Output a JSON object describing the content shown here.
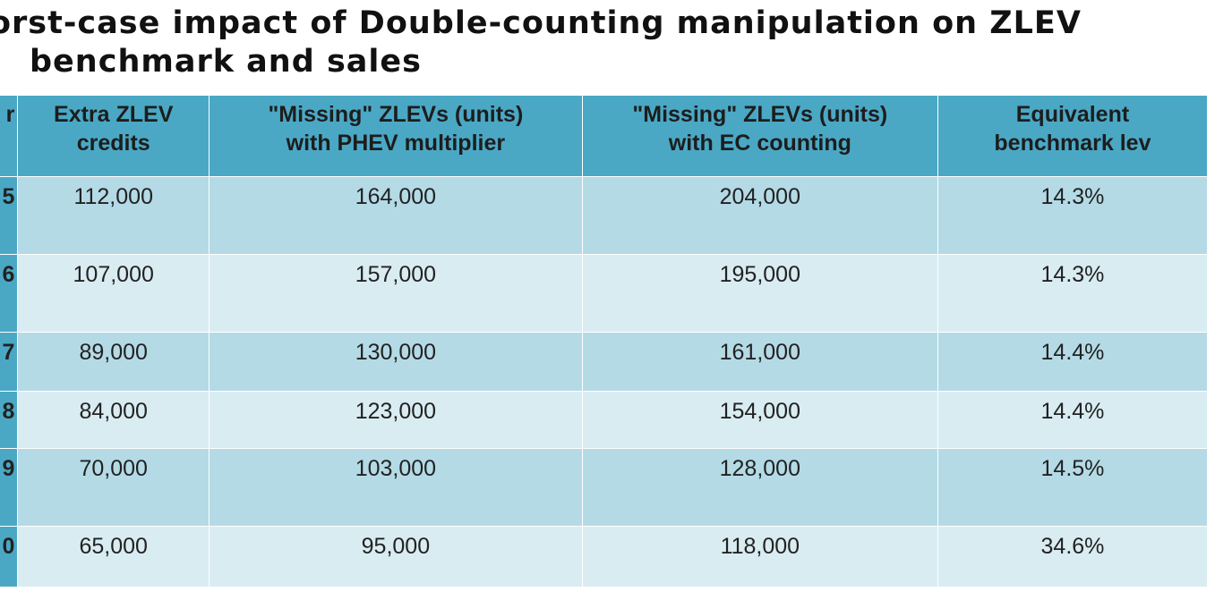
{
  "title": {
    "line1": "orst-case impact of Double-counting manipulation on ZLEV",
    "line2": "benchmark and sales"
  },
  "table": {
    "headers": [
      {
        "line1": "r",
        "line2": ""
      },
      {
        "line1": "Extra ZLEV",
        "line2": "credits"
      },
      {
        "line1": "\"Missing\" ZLEVs (units)",
        "line2": "with PHEV multiplier"
      },
      {
        "line1": "\"Missing\" ZLEVs (units)",
        "line2": "with EC counting"
      },
      {
        "line1": "Equivalent",
        "line2": "benchmark lev"
      }
    ],
    "rows": [
      {
        "year": "5",
        "extra_credits": "112,000",
        "missing_phev": "164,000",
        "missing_ec": "204,000",
        "benchmark": "14.3%"
      },
      {
        "year": "6",
        "extra_credits": "107,000",
        "missing_phev": "157,000",
        "missing_ec": "195,000",
        "benchmark": "14.3%"
      },
      {
        "year": "7",
        "extra_credits": "89,000",
        "missing_phev": "130,000",
        "missing_ec": "161,000",
        "benchmark": "14.4%"
      },
      {
        "year": "8",
        "extra_credits": "84,000",
        "missing_phev": "123,000",
        "missing_ec": "154,000",
        "benchmark": "14.4%"
      },
      {
        "year": "9",
        "extra_credits": "70,000",
        "missing_phev": "103,000",
        "missing_ec": "128,000",
        "benchmark": "14.5%"
      },
      {
        "year": "0",
        "extra_credits": "65,000",
        "missing_phev": "95,000",
        "missing_ec": "118,000",
        "benchmark": "34.6%"
      }
    ]
  },
  "colors": {
    "header": "#4aa8c5",
    "row_dark": "#b4dae6",
    "row_light": "#d9ecf2",
    "border": "#ffffff"
  }
}
